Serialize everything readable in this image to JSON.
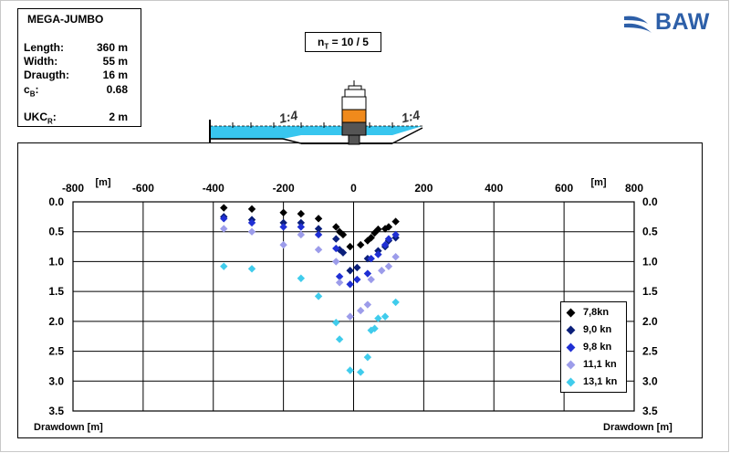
{
  "info": {
    "title": "MEGA-JUMBO",
    "rows": [
      {
        "key": "Length:",
        "value": "360 m"
      },
      {
        "key": "Width:",
        "value": "55 m"
      },
      {
        "key": "Draugth:",
        "value": "16 m"
      },
      {
        "key": "c_B:",
        "value": "0.68"
      },
      {
        "key": "UKC_R:",
        "value": "2 m"
      }
    ]
  },
  "nt_label": "n_T = 10 / 5",
  "logo_text": "BAW",
  "slope_labels": [
    "1:4",
    "1:4"
  ],
  "bottom_labels": {
    "left": "Drawdown [m]",
    "right": "Drawdown [m]"
  },
  "colors": {
    "logo": "#2d5fa8",
    "water": "#38c6ef",
    "vessel_orange": "#f08a1c"
  },
  "chart_data": {
    "type": "scatter",
    "x_unit": "[m]",
    "x_axis_position": "top",
    "xlim": [
      -800,
      800
    ],
    "x_ticks": [
      -800,
      -600,
      -400,
      -200,
      0,
      200,
      400,
      600,
      800
    ],
    "ylim": [
      0.0,
      3.5
    ],
    "y_inverted": true,
    "y_ticks": [
      "0.0",
      "0.5",
      "1.0",
      "1.5",
      "2.0",
      "2.5",
      "3.0",
      "3.5"
    ],
    "grid": true,
    "legend_position": "bottom-right",
    "series": [
      {
        "name": "7,8kn",
        "color": "#000000",
        "points": [
          [
            -370,
            0.1
          ],
          [
            -290,
            0.12
          ],
          [
            -200,
            0.18
          ],
          [
            -150,
            0.2
          ],
          [
            -100,
            0.28
          ],
          [
            -50,
            0.42
          ],
          [
            -40,
            0.5
          ],
          [
            -30,
            0.55
          ],
          [
            -10,
            0.75
          ],
          [
            20,
            0.72
          ],
          [
            40,
            0.65
          ],
          [
            50,
            0.6
          ],
          [
            60,
            0.52
          ],
          [
            70,
            0.46
          ],
          [
            90,
            0.45
          ],
          [
            100,
            0.42
          ],
          [
            120,
            0.33
          ]
        ]
      },
      {
        "name": "9,0 kn",
        "color": "#0b1f7a",
        "points": [
          [
            -370,
            0.25
          ],
          [
            -290,
            0.3
          ],
          [
            -200,
            0.35
          ],
          [
            -150,
            0.35
          ],
          [
            -100,
            0.45
          ],
          [
            -50,
            0.62
          ],
          [
            -40,
            0.8
          ],
          [
            -30,
            0.85
          ],
          [
            -10,
            1.15
          ],
          [
            10,
            1.1
          ],
          [
            40,
            0.95
          ],
          [
            70,
            0.82
          ],
          [
            90,
            0.75
          ],
          [
            100,
            0.65
          ],
          [
            120,
            0.6
          ]
        ]
      },
      {
        "name": "9,8 kn",
        "color": "#1f2fd4",
        "points": [
          [
            -370,
            0.28
          ],
          [
            -290,
            0.35
          ],
          [
            -200,
            0.42
          ],
          [
            -150,
            0.42
          ],
          [
            -100,
            0.55
          ],
          [
            -50,
            0.78
          ],
          [
            -40,
            1.25
          ],
          [
            -10,
            1.38
          ],
          [
            10,
            1.3
          ],
          [
            40,
            1.2
          ],
          [
            50,
            0.95
          ],
          [
            70,
            0.88
          ],
          [
            90,
            0.72
          ],
          [
            100,
            0.62
          ],
          [
            120,
            0.55
          ]
        ]
      },
      {
        "name": "11,1 kn",
        "color": "#9c9cea",
        "points": [
          [
            -370,
            0.45
          ],
          [
            -290,
            0.5
          ],
          [
            -200,
            0.72
          ],
          [
            -150,
            0.55
          ],
          [
            -100,
            0.8
          ],
          [
            -50,
            1.0
          ],
          [
            -40,
            1.35
          ],
          [
            -10,
            1.92
          ],
          [
            20,
            1.82
          ],
          [
            40,
            1.72
          ],
          [
            50,
            1.3
          ],
          [
            80,
            1.15
          ],
          [
            100,
            1.08
          ],
          [
            120,
            0.92
          ]
        ]
      },
      {
        "name": "13,1 kn",
        "color": "#40ccec",
        "points": [
          [
            -370,
            1.08
          ],
          [
            -290,
            1.12
          ],
          [
            -150,
            1.28
          ],
          [
            -100,
            1.58
          ],
          [
            -50,
            2.02
          ],
          [
            -40,
            2.3
          ],
          [
            -10,
            2.82
          ],
          [
            20,
            2.85
          ],
          [
            40,
            2.6
          ],
          [
            50,
            2.15
          ],
          [
            60,
            2.12
          ],
          [
            70,
            1.95
          ],
          [
            90,
            1.92
          ],
          [
            120,
            1.68
          ]
        ]
      }
    ]
  }
}
